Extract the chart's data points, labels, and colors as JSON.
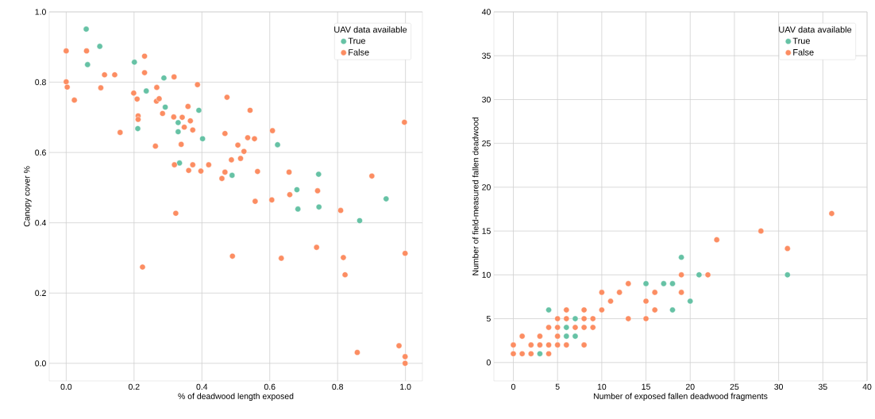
{
  "chart_data": [
    {
      "type": "scatter",
      "xlabel": "% of deadwood length exposed",
      "ylabel": "Canopy cover %",
      "legend_title": "UAV data available",
      "legend": "top right",
      "grid": true,
      "marker": "circle",
      "xlim": [
        -0.05,
        1.05
      ],
      "ylim": [
        -0.05,
        1.0
      ],
      "xticks": [
        {
          "value": 0,
          "label": "0.0"
        },
        0.2,
        0.4,
        0.6,
        0.8,
        {
          "value": 1,
          "label": "1.0"
        }
      ],
      "yticks": [
        {
          "value": 0,
          "label": "0.0"
        },
        0.2,
        0.4,
        0.6,
        0.8,
        {
          "value": 1,
          "label": "1.0"
        }
      ],
      "series": [
        {
          "name": "True",
          "color": "#66c2a5",
          "x": [
            0.059,
            0.099,
            0.063,
            0.201,
            0.288,
            0.236,
            0.292,
            0.391,
            0.211,
            0.33,
            0.33,
            0.402,
            0.334,
            0.489,
            0.623,
            0.744,
            0.68,
            0.683,
            0.745,
            0.943,
            0.865
          ],
          "values": [
            0.951,
            0.902,
            0.85,
            0.857,
            0.812,
            0.775,
            0.729,
            0.72,
            0.668,
            0.685,
            0.659,
            0.639,
            0.57,
            0.535,
            0.622,
            0.538,
            0.494,
            0.439,
            0.445,
            0.468,
            0.406
          ]
        },
        {
          "name": "False",
          "color": "#fc8d62",
          "x": [
            0,
            0.06,
            0.113,
            0.143,
            0.231,
            0.231,
            0.318,
            0,
            0.003,
            0.102,
            0.024,
            0.387,
            0.267,
            0.199,
            0.209,
            0.266,
            0.274,
            0.284,
            0.317,
            0.342,
            0.359,
            0.366,
            0.348,
            0.373,
            0.212,
            0.212,
            0.159,
            0.474,
            0.542,
            0.468,
            0.535,
            0.555,
            0.263,
            0.339,
            0.506,
            0.524,
            0.487,
            0.514,
            0.319,
            0.373,
            0.42,
            0.361,
            0.397,
            0.468,
            0.459,
            0.608,
            0.997,
            0.657,
            0.901,
            0.564,
            0.741,
            0.659,
            0.557,
            0.606,
            0.809,
            0.49,
            0.634,
            0.738,
            0.817,
            0.822,
            0.999,
            0.858,
            0.981,
            0.999,
            0.999,
            0.323,
            0.225
          ],
          "values": [
            0.889,
            0.889,
            0.821,
            0.821,
            0.874,
            0.827,
            0.815,
            0.801,
            0.786,
            0.784,
            0.749,
            0.793,
            0.785,
            0.769,
            0.752,
            0.746,
            0.753,
            0.711,
            0.701,
            0.7,
            0.731,
            0.69,
            0.672,
            0.664,
            0.704,
            0.694,
            0.657,
            0.757,
            0.72,
            0.654,
            0.642,
            0.639,
            0.618,
            0.623,
            0.621,
            0.603,
            0.579,
            0.583,
            0.565,
            0.565,
            0.565,
            0.549,
            0.547,
            0.544,
            0.526,
            0.662,
            0.686,
            0.544,
            0.533,
            0.546,
            0.491,
            0.48,
            0.461,
            0.465,
            0.435,
            0.305,
            0.299,
            0.33,
            0.301,
            0.252,
            0.313,
            0.031,
            0.05,
            0.019,
            0.0,
            0.427,
            0.274
          ]
        }
      ]
    },
    {
      "type": "scatter",
      "xlabel": "Number of exposed fallen deadwood fragments",
      "ylabel": "Number of field-measured fallen deadwood",
      "legend_title": "UAV data available",
      "legend": "top right",
      "grid": true,
      "marker": "circle",
      "xlim": [
        -2.2,
        40
      ],
      "ylim": [
        -2.1,
        40
      ],
      "xticks": [
        0,
        5,
        10,
        15,
        20,
        25,
        30,
        35,
        40
      ],
      "yticks": [
        0,
        5,
        10,
        15,
        20,
        25,
        30,
        35,
        40
      ],
      "series": [
        {
          "name": "True",
          "color": "#66c2a5",
          "x": [
            3,
            4,
            6,
            6,
            7,
            7,
            15,
            17,
            18,
            18,
            19,
            20,
            21,
            31
          ],
          "values": [
            1,
            6,
            4,
            3,
            5,
            3,
            9,
            9,
            9,
            6,
            12,
            7,
            10,
            10
          ]
        },
        {
          "name": "False",
          "color": "#fc8d62",
          "x": [
            0,
            0,
            1,
            1,
            2,
            2,
            3,
            3,
            4,
            4,
            4,
            5,
            5,
            5,
            5,
            6,
            6,
            6,
            7,
            8,
            8,
            8,
            8,
            9,
            9,
            10,
            10,
            11,
            12,
            13,
            13,
            15,
            15,
            16,
            16,
            19,
            19,
            22,
            23,
            28,
            31,
            36
          ],
          "values": [
            1,
            2,
            1,
            3,
            1,
            2,
            2,
            3,
            1,
            2,
            4,
            2,
            3,
            4,
            5,
            2,
            5,
            6,
            4,
            2,
            4,
            5,
            6,
            4,
            5,
            6,
            8,
            7,
            8,
            5,
            9,
            5,
            7,
            6,
            8,
            8,
            10,
            10,
            14,
            15,
            13,
            17
          ]
        }
      ]
    }
  ]
}
